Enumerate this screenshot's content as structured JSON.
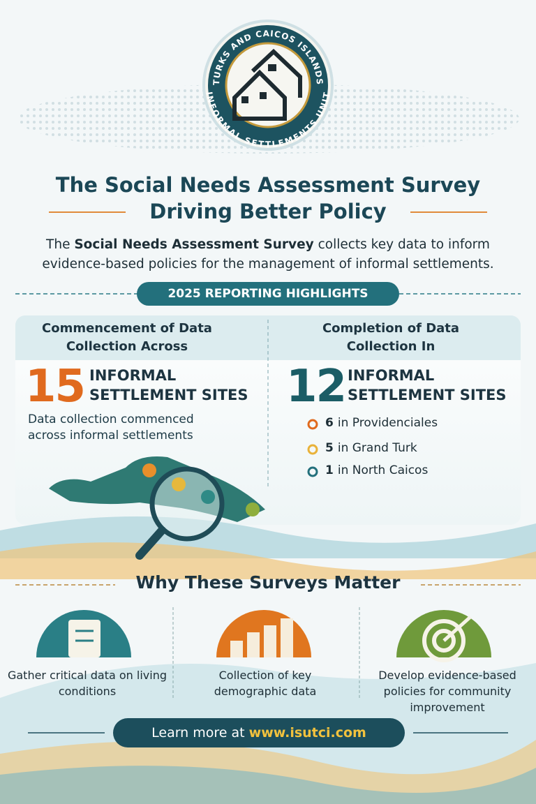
{
  "logo": {
    "top_text": "TURKS AND CAICOS ISLANDS",
    "bottom_text": "INFORMAL SETTLEMENTS UNIT"
  },
  "header": {
    "title_line1": "The Social Needs Assessment Survey",
    "title_line2": "Driving Better Policy"
  },
  "intro": {
    "prefix": "The ",
    "bold": "Social Needs Assessment Survey",
    "suffix": " collects key data to inform evidence-based policies for the management of informal settlements."
  },
  "highlights": {
    "label": "2025 REPORTING HIGHLIGHTS",
    "left": {
      "heading": "Commencement of Data Collection Across",
      "number": 15,
      "unit_line1": "INFORMAL",
      "unit_line2": "SETTLEMENT SITES",
      "note": "Data collection commenced across informal settlements"
    },
    "right": {
      "heading": "Completion of Data Collection In",
      "number": 12,
      "unit_line1": "INFORMAL",
      "unit_line2": "SETTLEMENT SITES",
      "breakdown": [
        {
          "count": 6,
          "place": "in Providenciales"
        },
        {
          "count": 5,
          "place": "in Grand Turk"
        },
        {
          "count": 1,
          "place": "in North Caicos"
        }
      ]
    }
  },
  "why": {
    "title": "Why These Surveys Matter",
    "items": [
      "Gather critical data on living conditions",
      "Collection of key demographic data",
      "Develop evidence-based policies for community improvement"
    ]
  },
  "footer": {
    "prefix": "Learn more at ",
    "url": "www.isutci.com"
  }
}
